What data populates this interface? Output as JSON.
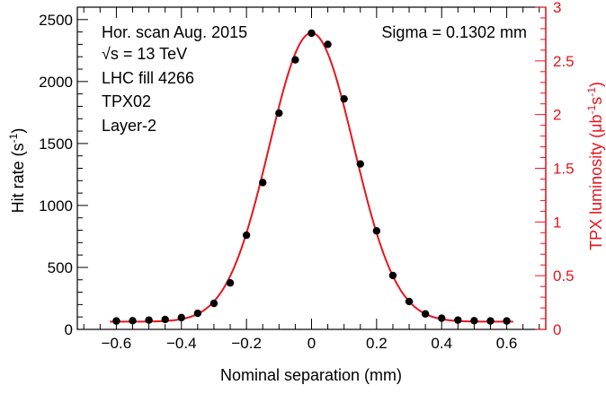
{
  "chart_data": {
    "type": "scatter",
    "xlabel": "Nominal separation (mm)",
    "ylabel": "Hit rate (s^-1)",
    "y2label": "TPX luminosity (μb^-1s^-1)",
    "xlim": [
      -0.72,
      0.72
    ],
    "ylim": [
      0,
      2600
    ],
    "y2lim": [
      0,
      3.0
    ],
    "x_ticks": [
      "−0.6",
      "−0.4",
      "−0.2",
      "0",
      "0.2",
      "0.4",
      "0.6"
    ],
    "x_tick_values": [
      -0.6,
      -0.4,
      -0.2,
      0,
      0.2,
      0.4,
      0.6
    ],
    "y_ticks": [
      "0",
      "500",
      "1000",
      "1500",
      "2000",
      "2500"
    ],
    "y_tick_values": [
      0,
      500,
      1000,
      1500,
      2000,
      2500
    ],
    "y2_ticks": [
      "0",
      "0.5",
      "1",
      "1.5",
      "2",
      "2.5",
      "3"
    ],
    "y2_tick_values": [
      0,
      0.5,
      1,
      1.5,
      2,
      2.5,
      3
    ],
    "annotations": {
      "line1": "Hor. scan Aug. 2015",
      "line2": "√s = 13 TeV",
      "line3": "LHC fill 4266",
      "line4": "TPX02",
      "line5": "Layer-2",
      "sigma": "Sigma = 0.1302 mm"
    },
    "series": [
      {
        "type": "points",
        "x": [
          -0.6,
          -0.55,
          -0.5,
          -0.45,
          -0.4,
          -0.35,
          -0.3,
          -0.25,
          -0.2,
          -0.15,
          -0.1,
          -0.05,
          0,
          0.05,
          0.1,
          0.15,
          0.2,
          0.25,
          0.3,
          0.35,
          0.4,
          0.45,
          0.5,
          0.55,
          0.6
        ],
        "y": [
          68,
          70,
          75,
          80,
          95,
          130,
          210,
          375,
          760,
          1185,
          1745,
          2175,
          2390,
          2300,
          1860,
          1335,
          795,
          435,
          225,
          125,
          90,
          75,
          70,
          68,
          68
        ]
      },
      {
        "type": "fit",
        "baseline": 62,
        "amplitude": 2330,
        "sigma": 0.1302
      }
    ],
    "colors": {
      "points": "#000000",
      "fit": "#e8141c",
      "right_axis": "#e8141c",
      "frame": "#000000"
    }
  }
}
